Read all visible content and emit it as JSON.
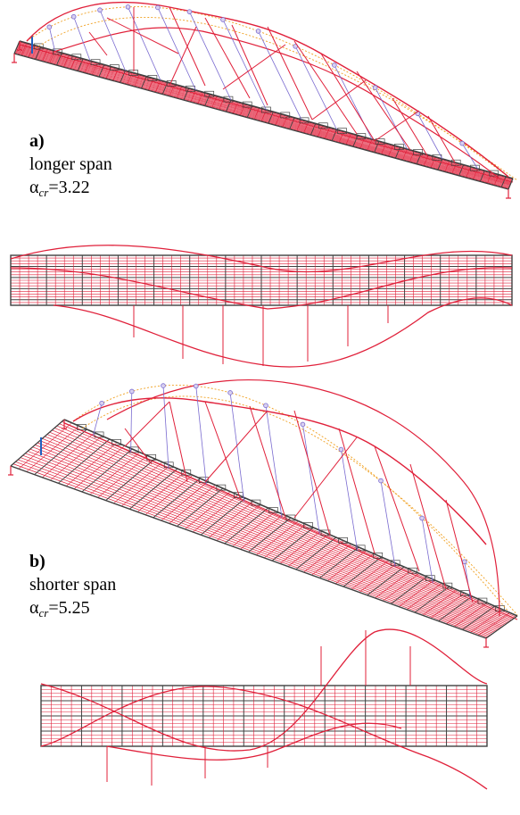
{
  "panels": [
    {
      "letter": "a)",
      "title": "longer span",
      "alpha_symbol": "α",
      "alpha_sub": "cr",
      "alpha_value": "=3.22"
    },
    {
      "letter": "b)",
      "title": "shorter span",
      "alpha_symbol": "α",
      "alpha_sub": "cr",
      "alpha_value": "=5.25"
    }
  ],
  "colors": {
    "mesh": "#e0203a",
    "hanger": "#7a6bd0",
    "arch_original": "#f0a020",
    "deck_dark": "#404040",
    "support": "#2060c0"
  }
}
